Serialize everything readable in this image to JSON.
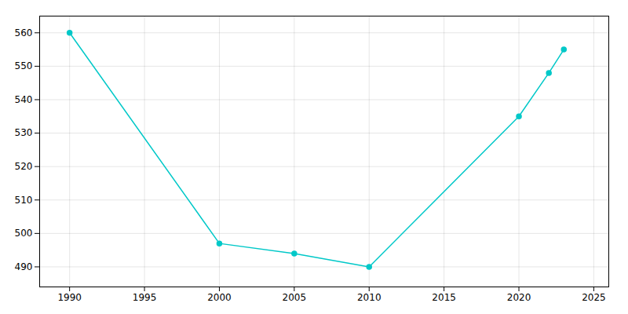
{
  "chart_data": {
    "type": "line",
    "x": [
      1990,
      2000,
      2005,
      2010,
      2020,
      2022,
      2023
    ],
    "values": [
      560,
      497,
      494,
      490,
      535,
      548,
      555
    ],
    "color": "#00C8C8",
    "marker": "circle",
    "xlim": [
      1988,
      2026
    ],
    "ylim": [
      484,
      565
    ],
    "xticks": [
      1990,
      1995,
      2000,
      2005,
      2010,
      2015,
      2020,
      2025
    ],
    "yticks": [
      490,
      500,
      510,
      520,
      530,
      540,
      550,
      560
    ],
    "grid": true
  }
}
